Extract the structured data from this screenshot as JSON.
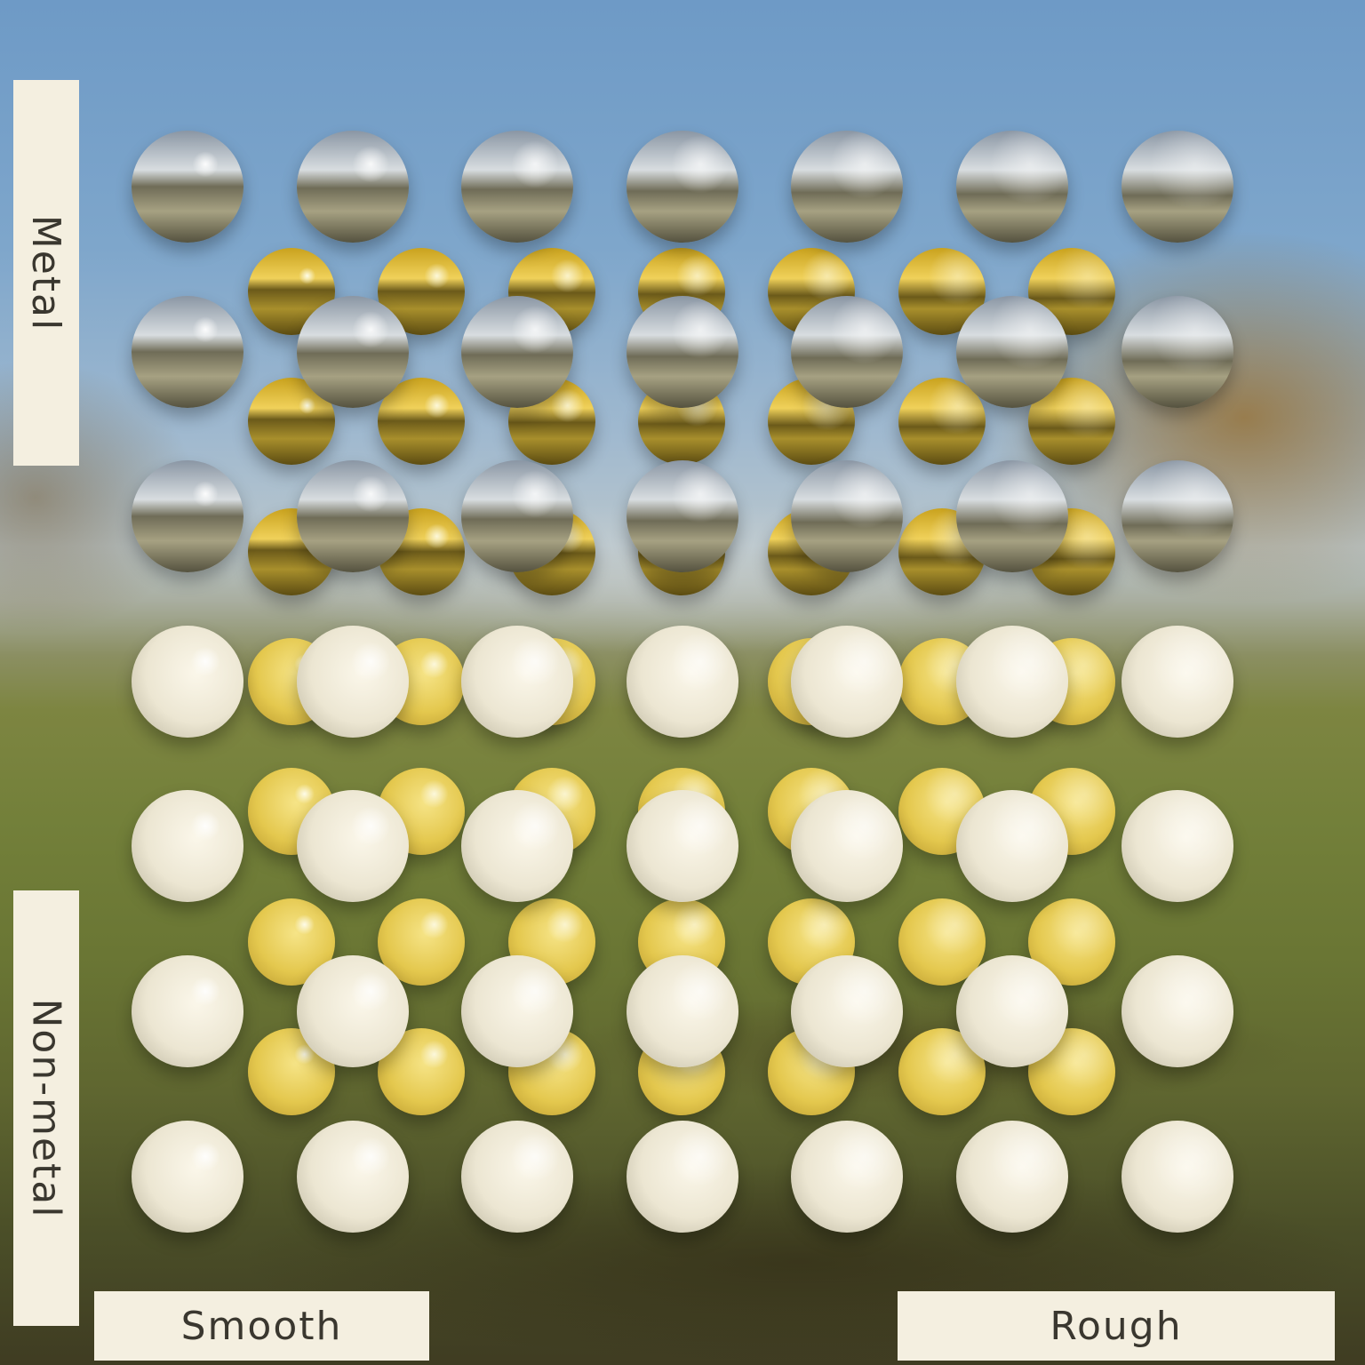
{
  "labels": {
    "metal": "Metal",
    "non_metal": "Non-metal",
    "smooth": "Smooth",
    "rough": "Rough"
  },
  "grid": {
    "columns": 7,
    "rows": 7,
    "row_order": "metal to non-metal",
    "column_order": "smooth to rough"
  },
  "layers": [
    {
      "name": "white-spheres",
      "color": "#ece6d2"
    },
    {
      "name": "gold-spheres",
      "color": "#e5c44a"
    }
  ],
  "colors": {
    "label_background": "#f4efe0",
    "label_text": "#3a372f",
    "sky": "#6e9ac6",
    "grass": "#73803a"
  }
}
